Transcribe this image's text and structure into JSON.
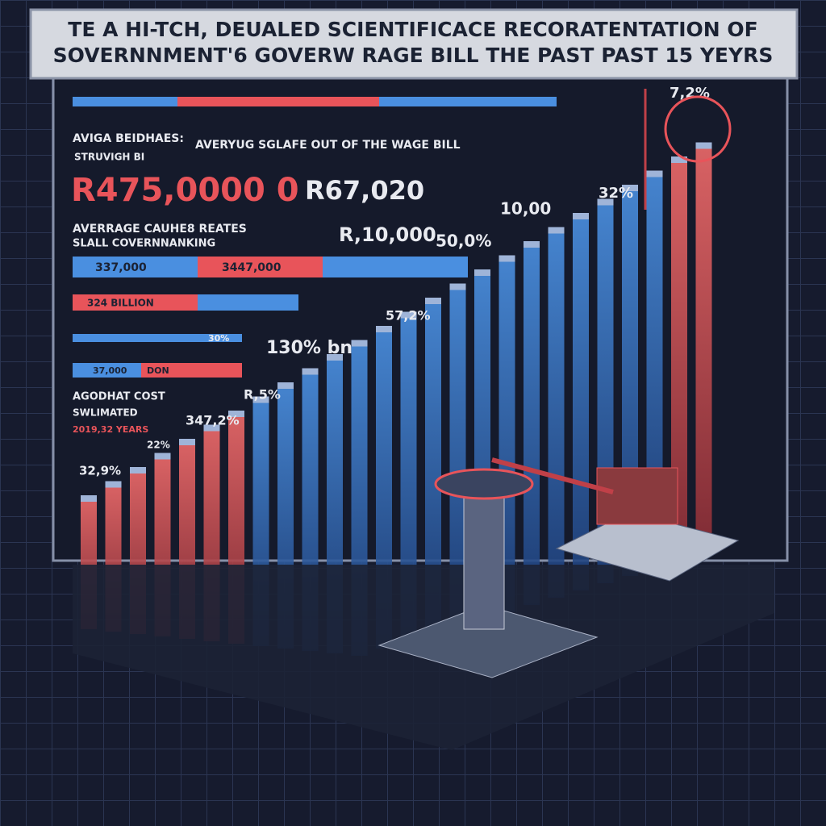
{
  "header": {
    "title_lines": [
      "TE A HI-TCH, DEUALED SCIENTIFICACE RECORATENTATION OF",
      "SOVERNNMENT'6 GOVERW RAGE BILL THE PAST PAST  15 YEYRS"
    ]
  },
  "panel": {
    "avg_heading": "AVIGA BEIDHAES:",
    "avg_sub": "STRUVIGH BI",
    "avg_caption": "AVERYUG SGLAFE OUT OF THE WAGE BILL",
    "big_value_1": "R475,0000 0",
    "big_value_2": "R67,020",
    "rates_heading": "AVERRAGE CAUHE8 REATES",
    "rates_sub": "SLALL COVERNNANKING",
    "bar_label_1": "337,000",
    "bar_label_2": "3447,000",
    "bar_label_3": "324 BILLION",
    "bar_label_4": "30%",
    "bar_label_5": "37,000",
    "bar_label_6": "DON",
    "cost_heading": "AGODHAT COST",
    "cost_sub": "SWLIMATED",
    "cost_years": "2019,32 YEARS"
  },
  "annotations": [
    "7,2%",
    "32%",
    "10,00",
    "R,10,000",
    "50,0%",
    "57,2%",
    "130% bn",
    "R,5%",
    "347,2%",
    "22%",
    "32,9%"
  ]
}
